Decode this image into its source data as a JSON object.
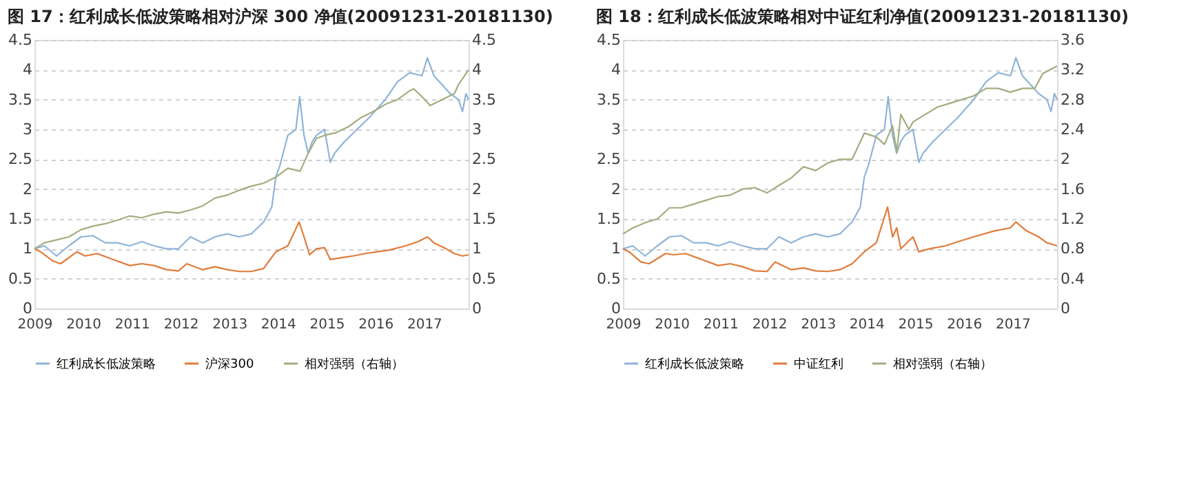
{
  "chart_data": [
    {
      "type": "line",
      "title": "图 17：红利成长低波策略相对沪深 300 净值(20091231-20181130)",
      "grid": "y",
      "legend": "bottom",
      "xlim": [
        "2009-12-31",
        "2018-11-30"
      ],
      "xticks": [
        {
          "value": "2009-12-31",
          "label": "2009"
        },
        {
          "value": "2010-12-31",
          "label": "2010"
        },
        {
          "value": "2011-12-31",
          "label": "2011"
        },
        {
          "value": "2012-12-31",
          "label": "2012"
        },
        {
          "value": "2013-12-31",
          "label": "2013"
        },
        {
          "value": "2014-12-31",
          "label": "2014"
        },
        {
          "value": "2015-12-31",
          "label": "2015"
        },
        {
          "value": "2016-12-31",
          "label": "2016"
        },
        {
          "value": "2017-12-31",
          "label": "2017"
        }
      ],
      "ylim": [
        0,
        4.5
      ],
      "yticks": [
        0,
        0.5,
        1,
        1.5,
        2,
        2.5,
        3,
        3.5,
        4,
        4.5
      ],
      "y2lim": [
        0,
        4.5
      ],
      "y2ticks": [
        0,
        0.5,
        1,
        1.5,
        2,
        2.5,
        3,
        3.5,
        4,
        4.5
      ],
      "series": [
        {
          "name": "红利成长低波策略",
          "color": "#8fb3d9",
          "x": [
            "2009-12-31",
            "2010-03-15",
            "2010-06-15",
            "2010-09-15",
            "2010-12-15",
            "2011-03-15",
            "2011-06-15",
            "2011-09-15",
            "2011-12-15",
            "2012-03-15",
            "2012-06-15",
            "2012-09-15",
            "2012-12-15",
            "2013-03-15",
            "2013-06-15",
            "2013-09-15",
            "2013-12-15",
            "2014-03-15",
            "2014-06-15",
            "2014-09-15",
            "2014-11-15",
            "2014-12-15",
            "2015-01-15",
            "2015-03-15",
            "2015-05-15",
            "2015-06-12",
            "2015-07-15",
            "2015-08-15",
            "2015-09-15",
            "2015-10-15",
            "2015-12-15",
            "2016-01-28",
            "2016-02-28",
            "2016-05-15",
            "2016-08-15",
            "2016-11-15",
            "2017-03-15",
            "2017-06-15",
            "2017-09-15",
            "2017-12-15",
            "2018-01-25",
            "2018-03-15",
            "2018-05-15",
            "2018-07-15",
            "2018-09-15",
            "2018-10-15",
            "2018-11-10",
            "2018-11-30"
          ],
          "values": [
            1.0,
            1.05,
            0.88,
            1.05,
            1.2,
            1.22,
            1.1,
            1.1,
            1.05,
            1.12,
            1.05,
            1.0,
            1.0,
            1.2,
            1.1,
            1.2,
            1.25,
            1.2,
            1.25,
            1.45,
            1.7,
            2.2,
            2.4,
            2.9,
            3.0,
            3.55,
            2.9,
            2.6,
            2.8,
            2.9,
            3.0,
            2.45,
            2.6,
            2.8,
            3.0,
            3.2,
            3.5,
            3.8,
            3.95,
            3.9,
            4.2,
            3.9,
            3.75,
            3.6,
            3.5,
            3.3,
            3.6,
            3.5
          ]
        },
        {
          "name": "沪深300",
          "color": "#e07b39",
          "x": [
            "2009-12-31",
            "2010-02-15",
            "2010-05-15",
            "2010-07-15",
            "2010-11-15",
            "2011-01-15",
            "2011-04-15",
            "2011-08-15",
            "2011-12-15",
            "2012-03-15",
            "2012-06-15",
            "2012-09-15",
            "2012-12-15",
            "2013-02-15",
            "2013-06-15",
            "2013-09-15",
            "2013-12-15",
            "2014-03-15",
            "2014-06-15",
            "2014-09-15",
            "2014-12-15",
            "2015-03-15",
            "2015-06-08",
            "2015-07-15",
            "2015-08-25",
            "2015-10-15",
            "2015-12-15",
            "2016-01-28",
            "2016-04-15",
            "2016-07-15",
            "2016-10-15",
            "2017-01-15",
            "2017-04-15",
            "2017-08-15",
            "2017-11-15",
            "2018-01-25",
            "2018-03-15",
            "2018-06-15",
            "2018-08-15",
            "2018-10-15",
            "2018-11-30"
          ],
          "values": [
            1.0,
            0.95,
            0.8,
            0.75,
            0.95,
            0.88,
            0.92,
            0.82,
            0.72,
            0.75,
            0.72,
            0.65,
            0.63,
            0.75,
            0.65,
            0.7,
            0.65,
            0.62,
            0.62,
            0.67,
            0.95,
            1.05,
            1.45,
            1.2,
            0.9,
            1.0,
            1.02,
            0.82,
            0.85,
            0.88,
            0.92,
            0.95,
            0.98,
            1.05,
            1.12,
            1.2,
            1.1,
            1.0,
            0.92,
            0.88,
            0.9
          ]
        },
        {
          "name": "相对强弱（右轴）",
          "color": "#a2ad7e",
          "axis": "y2",
          "x": [
            "2009-12-31",
            "2010-03-15",
            "2010-06-15",
            "2010-09-15",
            "2010-12-15",
            "2011-03-15",
            "2011-06-15",
            "2011-09-15",
            "2011-12-15",
            "2012-03-15",
            "2012-06-15",
            "2012-09-15",
            "2012-12-15",
            "2013-03-15",
            "2013-06-15",
            "2013-09-15",
            "2013-12-15",
            "2014-03-15",
            "2014-06-15",
            "2014-09-15",
            "2014-12-15",
            "2015-03-15",
            "2015-06-15",
            "2015-08-15",
            "2015-10-15",
            "2015-12-15",
            "2016-03-15",
            "2016-06-15",
            "2016-09-15",
            "2016-12-15",
            "2017-03-15",
            "2017-06-15",
            "2017-09-15",
            "2017-10-15",
            "2017-12-15",
            "2018-02-15",
            "2018-05-15",
            "2018-08-15",
            "2018-09-15",
            "2018-11-30"
          ],
          "values": [
            1.0,
            1.1,
            1.15,
            1.2,
            1.32,
            1.38,
            1.42,
            1.48,
            1.55,
            1.52,
            1.58,
            1.62,
            1.6,
            1.65,
            1.72,
            1.85,
            1.9,
            1.98,
            2.05,
            2.1,
            2.2,
            2.35,
            2.3,
            2.6,
            2.85,
            2.9,
            2.95,
            3.05,
            3.2,
            3.3,
            3.42,
            3.5,
            3.65,
            3.68,
            3.55,
            3.4,
            3.5,
            3.6,
            3.75,
            4.0
          ]
        }
      ]
    },
    {
      "type": "line",
      "title": "图 18：红利成长低波策略相对中证红利净值(20091231-20181130)",
      "grid": "y",
      "legend": "bottom",
      "xlim": [
        "2009-12-31",
        "2018-11-30"
      ],
      "xticks": [
        {
          "value": "2009-12-31",
          "label": "2009"
        },
        {
          "value": "2010-12-31",
          "label": "2010"
        },
        {
          "value": "2011-12-31",
          "label": "2011"
        },
        {
          "value": "2012-12-31",
          "label": "2012"
        },
        {
          "value": "2013-12-31",
          "label": "2013"
        },
        {
          "value": "2014-12-31",
          "label": "2014"
        },
        {
          "value": "2015-12-31",
          "label": "2015"
        },
        {
          "value": "2016-12-31",
          "label": "2016"
        },
        {
          "value": "2017-12-31",
          "label": "2017"
        }
      ],
      "ylim": [
        0,
        4.5
      ],
      "yticks": [
        0,
        0.5,
        1,
        1.5,
        2,
        2.5,
        3,
        3.5,
        4,
        4.5
      ],
      "y2lim": [
        0,
        3.6
      ],
      "y2ticks": [
        0,
        0.4,
        0.8,
        1.2,
        1.6,
        2,
        2.4,
        2.8,
        3.2,
        3.6
      ],
      "series": [
        {
          "name": "红利成长低波策略",
          "color": "#8fb3d9",
          "x": [
            "2009-12-31",
            "2010-03-15",
            "2010-06-15",
            "2010-09-15",
            "2010-12-15",
            "2011-03-15",
            "2011-06-15",
            "2011-09-15",
            "2011-12-15",
            "2012-03-15",
            "2012-06-15",
            "2012-09-15",
            "2012-12-15",
            "2013-03-15",
            "2013-06-15",
            "2013-09-15",
            "2013-12-15",
            "2014-03-15",
            "2014-06-15",
            "2014-09-15",
            "2014-11-15",
            "2014-12-15",
            "2015-01-15",
            "2015-03-15",
            "2015-05-15",
            "2015-06-12",
            "2015-07-15",
            "2015-08-15",
            "2015-09-15",
            "2015-10-15",
            "2015-12-15",
            "2016-01-28",
            "2016-02-28",
            "2016-05-15",
            "2016-08-15",
            "2016-11-15",
            "2017-03-15",
            "2017-06-15",
            "2017-09-15",
            "2017-12-15",
            "2018-01-25",
            "2018-03-15",
            "2018-05-15",
            "2018-07-15",
            "2018-09-15",
            "2018-10-15",
            "2018-11-10",
            "2018-11-30"
          ],
          "values": [
            1.0,
            1.05,
            0.88,
            1.05,
            1.2,
            1.22,
            1.1,
            1.1,
            1.05,
            1.12,
            1.05,
            1.0,
            1.0,
            1.2,
            1.1,
            1.2,
            1.25,
            1.2,
            1.25,
            1.45,
            1.7,
            2.2,
            2.4,
            2.9,
            3.0,
            3.55,
            2.9,
            2.6,
            2.8,
            2.9,
            3.0,
            2.45,
            2.6,
            2.8,
            3.0,
            3.2,
            3.5,
            3.8,
            3.95,
            3.9,
            4.2,
            3.9,
            3.75,
            3.6,
            3.5,
            3.3,
            3.6,
            3.5
          ]
        },
        {
          "name": "中证红利",
          "color": "#e07b39",
          "x": [
            "2009-12-31",
            "2010-02-15",
            "2010-05-15",
            "2010-07-15",
            "2010-11-15",
            "2011-01-15",
            "2011-04-15",
            "2011-08-15",
            "2011-12-15",
            "2012-03-15",
            "2012-06-15",
            "2012-09-15",
            "2012-12-15",
            "2013-02-15",
            "2013-06-15",
            "2013-09-15",
            "2013-12-15",
            "2014-03-15",
            "2014-06-15",
            "2014-09-15",
            "2014-12-15",
            "2015-03-15",
            "2015-06-08",
            "2015-07-15",
            "2015-08-15",
            "2015-09-15",
            "2015-12-15",
            "2016-01-28",
            "2016-04-15",
            "2016-08-15",
            "2016-11-15",
            "2017-03-15",
            "2017-08-15",
            "2017-12-15",
            "2018-01-25",
            "2018-04-15",
            "2018-07-15",
            "2018-09-15",
            "2018-11-30"
          ],
          "values": [
            1.0,
            0.95,
            0.78,
            0.75,
            0.92,
            0.9,
            0.92,
            0.82,
            0.72,
            0.75,
            0.7,
            0.63,
            0.62,
            0.78,
            0.65,
            0.68,
            0.63,
            0.62,
            0.65,
            0.75,
            0.95,
            1.1,
            1.7,
            1.2,
            1.35,
            1.0,
            1.2,
            0.95,
            1.0,
            1.05,
            1.12,
            1.2,
            1.3,
            1.35,
            1.45,
            1.3,
            1.2,
            1.1,
            1.05
          ]
        },
        {
          "name": "相对强弱（右轴）",
          "color": "#a2ad7e",
          "axis": "y2",
          "x": [
            "2009-12-31",
            "2010-03-15",
            "2010-06-15",
            "2010-09-15",
            "2010-12-15",
            "2011-03-15",
            "2011-06-15",
            "2011-09-15",
            "2011-12-15",
            "2012-03-15",
            "2012-06-15",
            "2012-09-15",
            "2012-12-15",
            "2013-03-15",
            "2013-06-15",
            "2013-09-15",
            "2013-12-15",
            "2014-03-15",
            "2014-06-15",
            "2014-09-15",
            "2014-12-15",
            "2015-03-15",
            "2015-05-15",
            "2015-07-15",
            "2015-08-15",
            "2015-09-15",
            "2015-11-15",
            "2015-12-15",
            "2016-03-15",
            "2016-06-15",
            "2016-09-15",
            "2016-12-15",
            "2017-03-15",
            "2017-06-15",
            "2017-09-15",
            "2017-12-15",
            "2018-03-15",
            "2018-06-15",
            "2018-08-15",
            "2018-11-30"
          ],
          "values": [
            1.0,
            1.08,
            1.15,
            1.2,
            1.35,
            1.35,
            1.4,
            1.45,
            1.5,
            1.52,
            1.6,
            1.62,
            1.55,
            1.65,
            1.75,
            1.9,
            1.85,
            1.95,
            2.0,
            2.0,
            2.35,
            2.3,
            2.2,
            2.45,
            2.1,
            2.6,
            2.4,
            2.5,
            2.6,
            2.7,
            2.75,
            2.8,
            2.85,
            2.95,
            2.95,
            2.9,
            2.95,
            2.95,
            3.15,
            3.25
          ]
        }
      ]
    }
  ]
}
